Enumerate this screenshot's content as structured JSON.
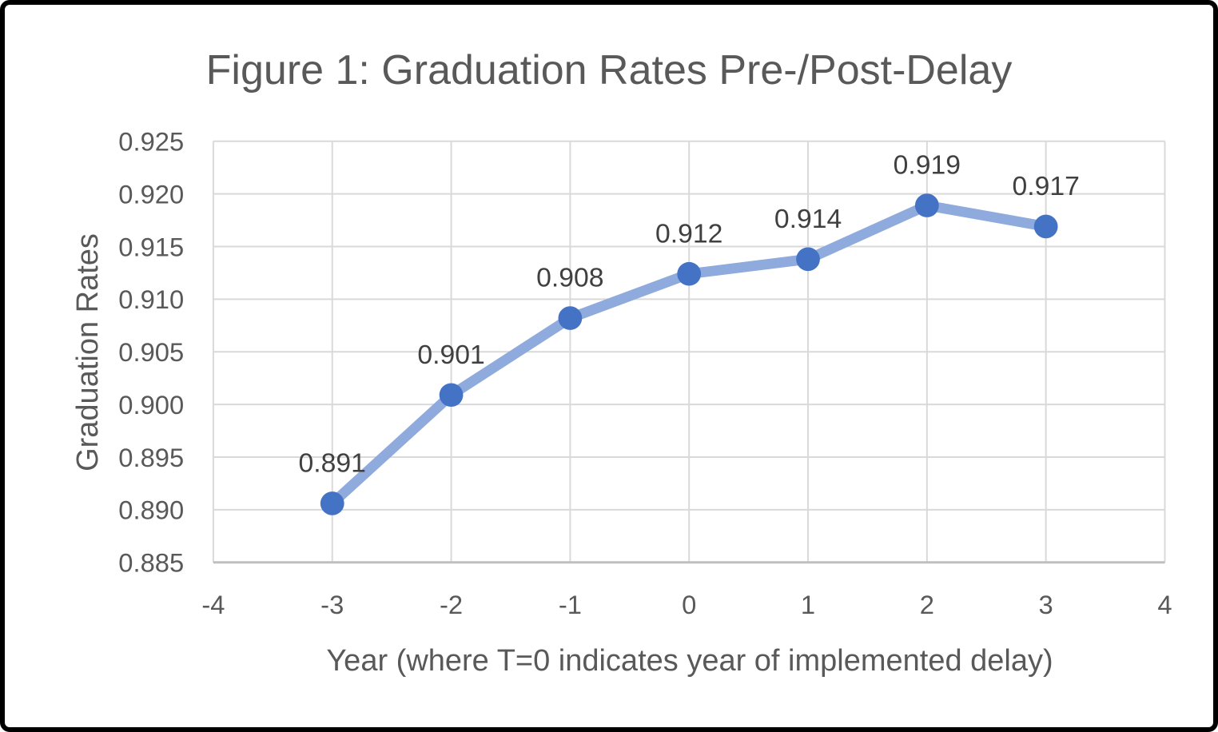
{
  "chart": {
    "title": "Figure 1: Graduation Rates Pre-/Post-Delay",
    "x_axis_title": "Year (where T=0 indicates year of implemented delay)",
    "y_axis_title": "Graduation Rates"
  },
  "chart_data": {
    "type": "line",
    "title": "Figure 1: Graduation Rates Pre-/Post-Delay",
    "xlabel": "Year (where T=0 indicates year of implemented delay)",
    "ylabel": "Graduation Rates",
    "x": [
      -3,
      -2,
      -1,
      0,
      1,
      2,
      3
    ],
    "values": [
      0.8906,
      0.9009,
      0.9082,
      0.9124,
      0.9138,
      0.9189,
      0.9169
    ],
    "point_labels": [
      "0.891",
      "0.901",
      "0.908",
      "0.912",
      "0.914",
      "0.919",
      "0.917"
    ],
    "xlim": [
      -4,
      4
    ],
    "ylim": [
      0.885,
      0.925
    ],
    "x_ticks": [
      -4,
      -3,
      -2,
      -1,
      0,
      1,
      2,
      3,
      4
    ],
    "x_tick_labels": [
      "-4",
      "-3",
      "-2",
      "-1",
      "0",
      "1",
      "2",
      "3",
      "4"
    ],
    "y_ticks": [
      0.885,
      0.89,
      0.895,
      0.9,
      0.905,
      0.91,
      0.915,
      0.92,
      0.925
    ],
    "y_tick_labels": [
      "0.885",
      "0.890",
      "0.895",
      "0.900",
      "0.905",
      "0.910",
      "0.915",
      "0.920",
      "0.925"
    ],
    "grid": true,
    "legend": "none",
    "colors": {
      "line": "#8FAADC",
      "marker": "#4472C4",
      "gridline": "#D9D9D9",
      "axis_line": "#BFBFBF",
      "tick_text": "#595959",
      "data_label_text": "#404040",
      "title_text": "#595959",
      "frame_border": "#000000",
      "background": "#FFFFFF"
    }
  }
}
